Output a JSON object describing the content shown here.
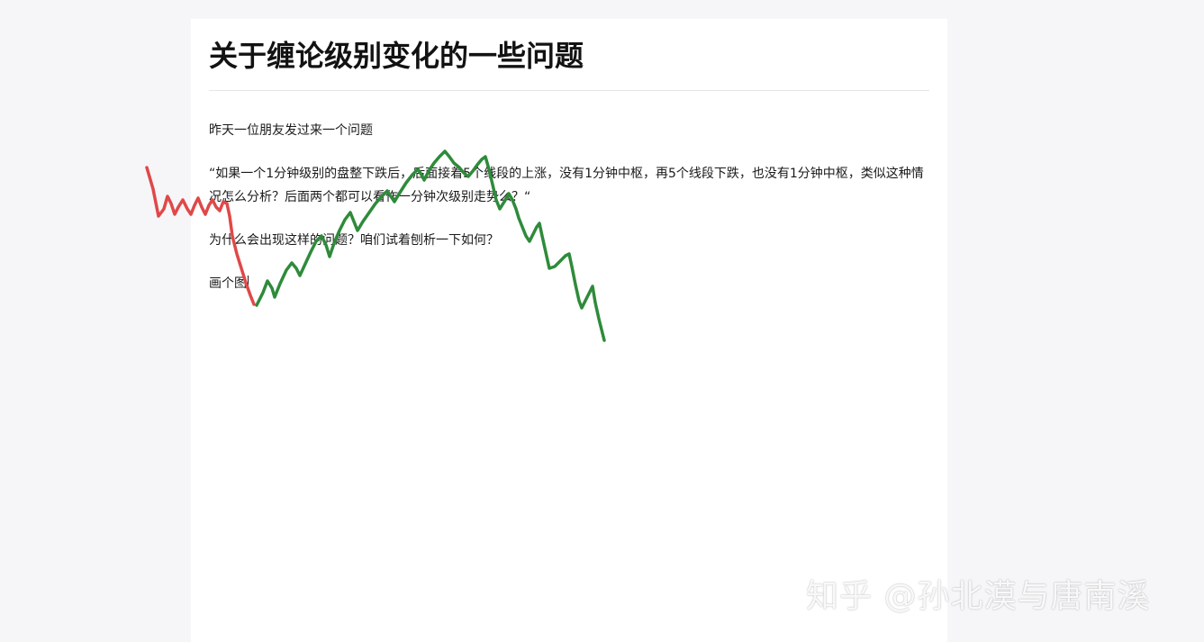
{
  "article": {
    "title": "关于缠论级别变化的一些问题",
    "paragraphs": [
      "昨天一位朋友发过来一个问题",
      "“如果一个1分钟级别的盘整下跌后，后面接着5个线段的上涨，没有1分钟中枢，再5个线段下跌，也没有1分钟中枢，类似这种情况怎么分析？后面两个都可以看作一分钟次级别走势么？“",
      "为什么会出现这样的问题？咱们试着刨析一下如何？",
      "画个图"
    ]
  },
  "annotation": {
    "colors": {
      "red_stroke": "#e04848",
      "green_stroke": "#2e8b3a"
    }
  },
  "watermark": {
    "text": "知乎 @孙北漠与唐南溪"
  },
  "colors": {
    "page_background": "#f6f6f8",
    "card_background": "#ffffff",
    "title": "#121212",
    "text": "#1a1a1a",
    "divider": "#e6e6e6"
  }
}
